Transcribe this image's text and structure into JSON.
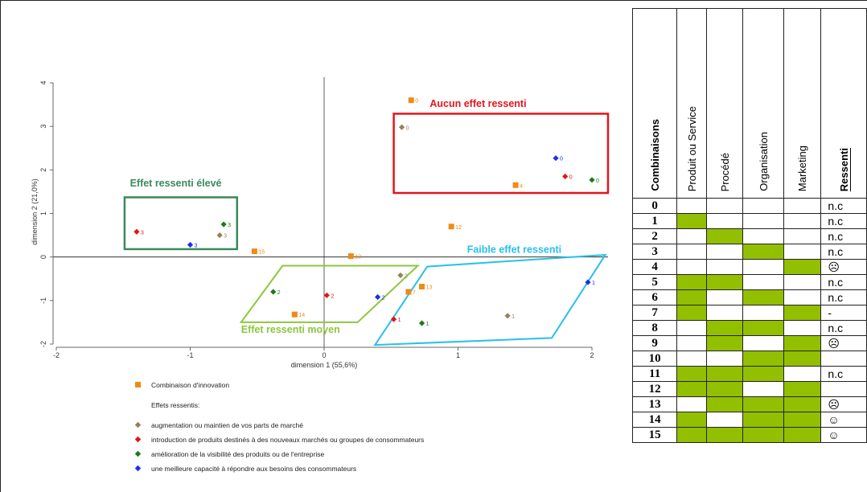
{
  "chart_data": {
    "type": "scatter",
    "xlabel": "dimension 1 (55,6%)",
    "ylabel": "dimension 2 (21,0%)",
    "xlim": [
      -2,
      2
    ],
    "ylim": [
      -2,
      4
    ],
    "xticks": [
      -2,
      -1,
      0,
      1,
      2
    ],
    "yticks": [
      -2,
      -1,
      0,
      1,
      2,
      3,
      4
    ],
    "xtick_labels": [
      "-2",
      "-1",
      "0",
      "1",
      "2"
    ],
    "ytick_labels": [
      "-2",
      "-1",
      "0",
      "1",
      "2",
      "3",
      "4"
    ],
    "colors": {
      "combinaison": "#f08a16",
      "parts": "#9b7f56",
      "nouveaux": "#e3151a",
      "visibilite": "#1a7a1a",
      "capacite": "#1f2ee6"
    },
    "series": [
      {
        "name": "Combinaison d'innovation",
        "marker": "square",
        "color": "#f08a16",
        "points": [
          {
            "x": 0.65,
            "y": 3.6,
            "label": "0"
          },
          {
            "x": 1.43,
            "y": 1.65,
            "label": "4"
          },
          {
            "x": 0.95,
            "y": 0.7,
            "label": "12"
          },
          {
            "x": -0.52,
            "y": 0.13,
            "label": "15"
          },
          {
            "x": 0.2,
            "y": 0.02,
            "label": "10"
          },
          {
            "x": 0.73,
            "y": -0.68,
            "label": "13"
          },
          {
            "x": 0.63,
            "y": -0.8,
            "label": "7"
          },
          {
            "x": -0.22,
            "y": -1.32,
            "label": "14"
          }
        ]
      },
      {
        "name": "augmentation ou maintien de vos parts de marché",
        "marker": "diamond",
        "color": "#9b7f56",
        "points": [
          {
            "x": 0.58,
            "y": 2.98,
            "label": "0"
          },
          {
            "x": -0.78,
            "y": 0.5,
            "label": "3"
          },
          {
            "x": 0.57,
            "y": -0.42,
            "label": "2"
          },
          {
            "x": 1.37,
            "y": -1.35,
            "label": "1"
          }
        ]
      },
      {
        "name": "introduction de produits destinés à des nouveaux marchés ou groupes de consommateurs",
        "marker": "diamond",
        "color": "#e3151a",
        "points": [
          {
            "x": 1.8,
            "y": 1.85,
            "label": "0"
          },
          {
            "x": -1.4,
            "y": 0.58,
            "label": "3"
          },
          {
            "x": 0.02,
            "y": -0.88,
            "label": "2"
          },
          {
            "x": 0.52,
            "y": -1.43,
            "label": "1"
          }
        ]
      },
      {
        "name": "amélioration de la visibilité des produits ou de l'entreprise",
        "marker": "diamond",
        "color": "#1a7a1a",
        "points": [
          {
            "x": 2.0,
            "y": 1.77,
            "label": "0"
          },
          {
            "x": -0.75,
            "y": 0.75,
            "label": "3"
          },
          {
            "x": -0.38,
            "y": -0.8,
            "label": "2"
          },
          {
            "x": 0.73,
            "y": -1.52,
            "label": "1"
          }
        ]
      },
      {
        "name": "une meilleure capacité à répondre aux besoins des consommateurs",
        "marker": "diamond",
        "color": "#1f2ee6",
        "points": [
          {
            "x": 1.73,
            "y": 2.27,
            "label": "0"
          },
          {
            "x": -1.0,
            "y": 0.28,
            "label": "3"
          },
          {
            "x": 0.4,
            "y": -0.92,
            "label": "2"
          },
          {
            "x": 1.97,
            "y": -0.58,
            "label": "1"
          }
        ]
      }
    ],
    "annotations": [
      {
        "text": "Aucun effet ressenti",
        "color": "#e3151a"
      },
      {
        "text": "Effet ressenti élevé",
        "color": "#3a8a5a"
      },
      {
        "text": "Faible effet ressenti",
        "color": "#29c0ea"
      },
      {
        "text": "Effet  ressenti  moyen",
        "color": "#8dc63f"
      }
    ],
    "legend": {
      "combinaison": "Combinaison d'innovation",
      "effets_title": "Effets ressentis:",
      "items": [
        {
          "text": "augmentation ou maintien de vos parts de marché",
          "color": "#9b7f56"
        },
        {
          "text": "introduction de produits destinés à des nouveaux marchés ou groupes de consommateurs",
          "color": "#e3151a"
        },
        {
          "text": "amélioration de la visibilité des produits ou de l'entreprise",
          "color": "#1a7a1a"
        },
        {
          "text": "une meilleure capacité à répondre aux besoins des consommateurs",
          "color": "#1f2ee6"
        }
      ]
    }
  },
  "table": {
    "type": "table",
    "headers": [
      "Combinaisons",
      "Produit ou Service",
      "Procédé",
      "Organisation",
      "Marketing",
      "Ressenti"
    ],
    "highlight_color": "#92c000",
    "rows": [
      {
        "c": "0",
        "flags": [
          0,
          0,
          0,
          0
        ],
        "ressenti": "n.c"
      },
      {
        "c": "1",
        "flags": [
          1,
          0,
          0,
          0
        ],
        "ressenti": "n.c"
      },
      {
        "c": "2",
        "flags": [
          0,
          1,
          0,
          0
        ],
        "ressenti": "n.c"
      },
      {
        "c": "3",
        "flags": [
          0,
          0,
          1,
          0
        ],
        "ressenti": "n.c"
      },
      {
        "c": "4",
        "flags": [
          0,
          0,
          0,
          1
        ],
        "ressenti": "☹"
      },
      {
        "c": "5",
        "flags": [
          1,
          1,
          0,
          0
        ],
        "ressenti": "n.c"
      },
      {
        "c": "6",
        "flags": [
          1,
          0,
          1,
          0
        ],
        "ressenti": "n.c"
      },
      {
        "c": "7",
        "flags": [
          1,
          0,
          0,
          1
        ],
        "ressenti": "-"
      },
      {
        "c": "8",
        "flags": [
          0,
          1,
          1,
          0
        ],
        "ressenti": "n.c"
      },
      {
        "c": "9",
        "flags": [
          0,
          1,
          0,
          1
        ],
        "ressenti": "☹"
      },
      {
        "c": "10",
        "flags": [
          0,
          0,
          1,
          1
        ],
        "ressenti": ""
      },
      {
        "c": "11",
        "flags": [
          1,
          1,
          1,
          0
        ],
        "ressenti": "n.c"
      },
      {
        "c": "12",
        "flags": [
          1,
          1,
          0,
          1
        ],
        "ressenti": ""
      },
      {
        "c": "13",
        "flags": [
          0,
          1,
          1,
          1
        ],
        "ressenti": "☹"
      },
      {
        "c": "14",
        "flags": [
          1,
          0,
          1,
          1
        ],
        "ressenti": "☺"
      },
      {
        "c": "15",
        "flags": [
          1,
          1,
          1,
          1
        ],
        "ressenti": "☺"
      }
    ]
  }
}
